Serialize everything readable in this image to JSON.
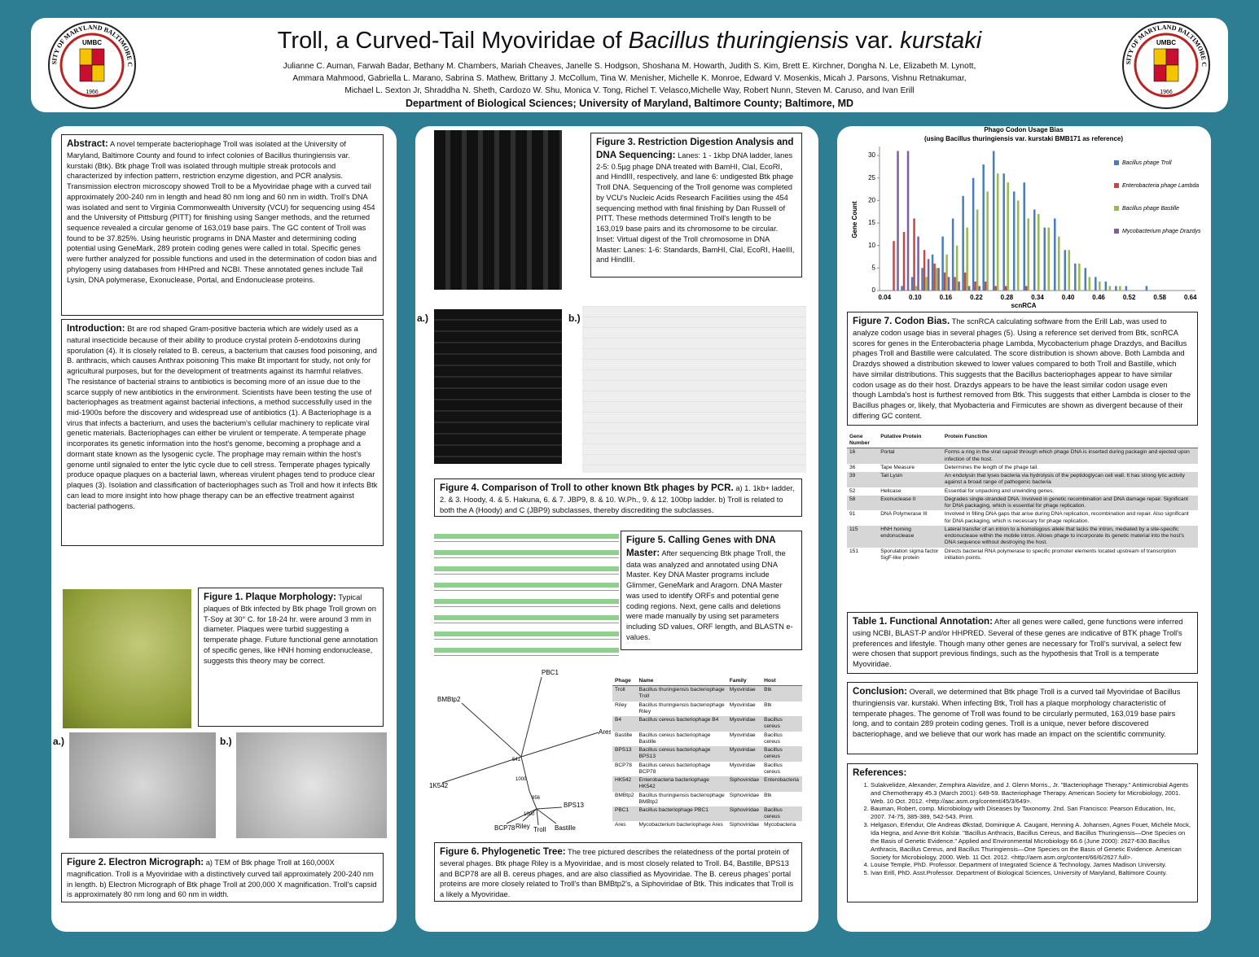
{
  "header": {
    "title": [
      "Troll, a Curved-Tail Myoviridae of ",
      "Bacillus thuringiensis",
      " var. ",
      "kurstaki"
    ],
    "authors": [
      "Julianne C. Auman, Farwah Badar, Bethany M. Chambers, Mariah Cheaves, Janelle S. Hodgson, Shoshana M. Howarth, Judith S. Kim, Brett E. Kirchner, Dongha N. Le, Elizabeth M. Lynott,",
      "Ammara Mahmood, Gabriella L. Marano, Sabrina S. Mathew, Brittany J. McCollum, Tina W. Menisher, Michelle K. Monroe, Edward V. Mosenkis, Micah J. Parsons, Vishnu Retnakumar,",
      "Michael L. Sexton Jr, Shraddha N. Sheth, Cardozo W. Shu, Monica V. Tong, Richel T. Velasco,Michelle Way, Robert Nunn, Steven M. Caruso, and Ivan Erill"
    ],
    "department": "Department of Biological Sciences; University of Maryland, Baltimore County; Baltimore, MD"
  },
  "logo": {
    "ring": "UNIVERSITY OF MARYLAND BALTIMORE COUNTY",
    "name": "UMBC",
    "year": "1966"
  },
  "abstract": {
    "heading": "Abstract:",
    "text": " A novel temperate bacteriophage Troll was isolated at the University of Maryland, Baltimore County and found to infect colonies of Bacillus thuringiensis var. kurstaki (Btk).  Btk phage Troll was isolated through multiple streak protocols and characterized by infection pattern, restriction enzyme digestion, and PCR analysis. Transmission electron microscopy showed Troll to be a Myoviridae phage with a curved tail approximately 200-240 nm in length and head 80 nm long and 60 nm in width. Troll's DNA was isolated and sent to Virginia Commonwealth University (VCU) for sequencing using 454 and the University of Pittsburg (PITT) for finishing using Sanger methods, and the returned sequence revealed a circular genome of 163,019 base pairs. The GC content of Troll was found to be 37.825%. Using heuristic programs in DNA Master and determining coding potential using GeneMark, 289 protein coding genes were called in total. Specific genes were further analyzed for possible functions and used in the determination of codon bias and phylogeny using databases from HHPred and NCBI. These annotated genes include Tail Lysin, DNA polymerase, Exonuclease, Portal, and Endonuclease proteins."
  },
  "introduction": {
    "heading": "Introduction:",
    "text": " Bt are rod shaped Gram-positive bacteria which are widely used as a natural insecticide because of their ability to produce crystal protein δ-endotoxins during sporulation (4). It is closely related to B. cereus, a bacterium that causes food poisoning, and B. anthracis, which causes Anthrax poisoning This make Bt important for study, not only for agricultural purposes, but for the development of treatments against its harmful relatives. The resistance of bacterial strains to antibiotics is becoming more of an issue due to the scarce supply of new antibiotics in the environment. Scientists have been testing the use of bacteriophages as treatment against bacterial infections, a method successfully used in the mid-1900s before the discovery and widespread use of antibiotics (1). A Bacteriophage is a virus that infects a bacterium, and uses the bacterium's cellular machinery to replicate viral genetic materials. Bacteriophages can either be virulent or temperate. A temperate phage incorporates its genetic information into the host's genome, becoming a prophage and a dormant state known as the lysogenic cycle. The prophage may remain within the host's genome until signaled to enter the lytic cycle due to cell stress. Temperate phages typically produce opaque plaques on a bacterial lawn, whereas virulent phages tend to produce clear plaques (3). Isolation and classification of bacteriophages such as Troll and how it infects Btk can lead to more insight into how phage therapy can be an effective treatment against bacterial pathogens."
  },
  "figure1": {
    "heading": "Figure 1. Plaque Morphology:",
    "text": " Typical plaques of Btk infected by Btk phage Troll grown on T-Soy at 30° C. for 18-24 hr. were around 3 mm in diameter. Plaques were turbid suggesting a temperate phage. Future functional gene annotation of specific genes, like HNH homing endonuclease, suggests this theory may be correct."
  },
  "figure2": {
    "labels": [
      "a.)",
      "b.)"
    ],
    "heading": "Figure 2. Electron Micrograph:",
    "text": " a) TEM of Btk phage Troll at 160,000X magnification. Troll is a Myoviridae with a distinctively curved tail approximately 200-240 nm in length. b) Electron Micrograph of Btk phage Troll at 200,000 X magnification. Troll's capsid is approximately 80 nm long and 60 nm in width."
  },
  "figure3": {
    "heading": "Figure 3. Restriction Digestion Analysis and DNA Sequencing:",
    "text": " Lanes: 1 - 1kbp DNA ladder, lanes 2-5: 0.5µg phage DNA treated with BamHI, ClaI, EcoRI, and HindIII, respectively, and lane 6: undigested Btk phage Troll DNA. Sequencing of the Troll genome was completed by VCU's Nucleic Acids Research Facilities using the 454 sequencing method with final finishing by Dan Russell of PITT. These methods determined Troll's length to be 163,019 base pairs and its chromosome to be circular. Inset: Virtual digest of the Troll chromosome in DNA Master: Lanes: 1-6: Standards, BamHI, ClaI, EcoRI, HaeIII, and HindIII."
  },
  "figure4": {
    "labels": [
      "a.)",
      "b.)"
    ],
    "heading": "Figure 4. Comparison of Troll to other known Btk phages by PCR.",
    "text": " a) 1. 1kb+ ladder, 2. & 3. Hoody, 4. & 5. Hakuna, 6. & 7. JBP9, 8. & 10. W.Ph., 9. & 12. 100bp ladder. b) Troll is related to both the A (Hoody) and C (JBP9) subclasses, thereby discrediting the subclasses."
  },
  "figure5": {
    "heading": "Figure 5. Calling Genes with DNA Master:",
    "text": " After sequencing Btk phage Troll, the data was analyzed and annotated using DNA Master. Key DNA Master programs include Glimmer, GeneMark and Aragorn. DNA Master was used to identify ORFs and potential gene coding regions. Next, gene calls and deletions were made manually by using set parameters including SD values, ORF length, and BLASTN e-values."
  },
  "tree": {
    "labels": [
      "PBC1",
      "BMBtp2",
      "Ares",
      "1K542",
      "BPS13",
      "BCP78",
      "Riley",
      "Troll",
      "Bastille"
    ],
    "bootstrap": [
      541,
      1000,
      956,
      1000
    ]
  },
  "phage_table": {
    "columns": [
      "Phage",
      "Name",
      "Family",
      "Host"
    ],
    "rows": [
      [
        "Troll",
        "Bacillus thuringiensis bacteriophage Troll",
        "Myoviridae",
        "Btk"
      ],
      [
        "Riley",
        "Bacillus thuringiensis bacteriophage Riley",
        "Myoviridae",
        "Btk"
      ],
      [
        "B4",
        "Bacillus cereus bacteriophage B4",
        "Myoviridae",
        "Bacillus cereus"
      ],
      [
        "Bastille",
        "Bacillus cereus bacteriophage Bastille",
        "Myoviridae",
        "Bacillus cereus"
      ],
      [
        "BPS13",
        "Bacillus cereus bacteriophage BPS13",
        "Myoviridae",
        "Bacillus cereus"
      ],
      [
        "BCP78",
        "Bacillus cereus bacteriophage BCP78",
        "Myoviridae",
        "Bacillus cereus"
      ],
      [
        "HK542",
        "Enterobacteria bacteriophage HK542",
        "Siphoviridae",
        "Enterobacteria"
      ],
      [
        "BMBtp2",
        "Bacillus thuringiensis bacteriophage BMBtp2",
        "Siphoviridae",
        "Btk"
      ],
      [
        "PBC1",
        "Bacillus bacteriophage PBC1",
        "Siphoviridae",
        "Bacillus cereus"
      ],
      [
        "Ares",
        "Mycobacterium bacteriophage Ares",
        "Siphoviridae",
        "Mycobacteria"
      ]
    ]
  },
  "figure6": {
    "heading": "Figure 6. Phylogenetic Tree:",
    "text": " The tree pictured describes the relatedness of the portal protein of several phages. Btk phage Riley is a Myoviridae, and is most closely related to Troll. B4, Bastille, BPS13 and BCP78 are all B. cereus phages, and are also classified as Myoviridae. The B. cereus phages' portal proteins are more closely related to Troll's than BMBtp2's, a Siphoviridae of Btk. This indicates that Troll is a likely a Myoviridae."
  },
  "chart_data": {
    "type": "bar",
    "title": "Phago Codon Usage Bias",
    "subtitle": "(using Bacillus thuringiensis var. kurstaki BMB171 as reference)",
    "xlabel": "scnRCA",
    "ylabel": "Gene Count",
    "categories": [
      "0.04",
      null,
      null,
      "0.10",
      null,
      null,
      "0.16",
      null,
      null,
      "0.22",
      null,
      null,
      "0.28",
      null,
      null,
      "0.34",
      null,
      null,
      "0.40",
      null,
      null,
      "0.46",
      null,
      null,
      "0.52",
      null,
      null,
      "0.58",
      null,
      null,
      "0.64"
    ],
    "ylim": [
      0,
      32
    ],
    "yticks": [
      0,
      5,
      10,
      15,
      20,
      25,
      30
    ],
    "legend": "right",
    "grid": false,
    "series": [
      {
        "name": "Bacillus phage Troll",
        "color": "#4a7ebb",
        "values": [
          0,
          0,
          1,
          3,
          5,
          8,
          12,
          16,
          21,
          25,
          28,
          31,
          26,
          22,
          24,
          18,
          14,
          16,
          9,
          6,
          5,
          3,
          2,
          1,
          1,
          0,
          1,
          0,
          0,
          0,
          0
        ]
      },
      {
        "name": "Enterobacteria phage Lambda",
        "color": "#be4b48",
        "values": [
          0,
          11,
          13,
          16,
          9,
          6,
          4,
          3,
          4,
          2,
          2,
          1,
          1,
          0,
          1,
          0,
          0,
          0,
          0,
          0,
          0,
          0,
          0,
          0,
          0,
          0,
          0,
          0,
          0,
          0,
          0
        ]
      },
      {
        "name": "Bacillus phage Bastille",
        "color": "#98b954",
        "values": [
          0,
          0,
          0,
          1,
          3,
          5,
          8,
          10,
          14,
          18,
          22,
          26,
          24,
          20,
          16,
          17,
          14,
          12,
          9,
          6,
          3,
          2,
          1,
          1,
          0,
          0,
          0,
          0,
          0,
          0,
          0
        ]
      },
      {
        "name": "Mycobacterium phage Drazdys",
        "color": "#7d60a0",
        "values": [
          0,
          31,
          31,
          12,
          7,
          5,
          3,
          2,
          1,
          1,
          0,
          0,
          0,
          0,
          0,
          0,
          0,
          0,
          0,
          0,
          0,
          0,
          0,
          0,
          0,
          0,
          0,
          0,
          0,
          0,
          0
        ]
      }
    ]
  },
  "figure7": {
    "heading": "Figure 7. Codon Bias.",
    "text": " The scnRCA calculating software from the Erill Lab, was used to analyze codon usage bias in several phages (5). Using a reference set derived from Btk, scnRCA scores for genes in the Enterobacteria phage Lambda, Mycobacterium phage Drazdys, and Bacillus phages Troll and Bastille were calculated. The score distribution is shown above. Both Lambda and Drazdys showed a distribution skewed to lower values compared to both Troll and Bastille, which have similar distributions. This suggests that the Bacillus bacteriophages appear to have similar codon usage as do their host. Drazdys appears to be have the least similar codon usage even though Lambda's host is furthest removed from Btk. This suggests that either Lambda is closer to the Bacillus phages or, likely, that Myobacteria and Firmicutes are shown as divergent because of their differing GC content."
  },
  "table1": {
    "columns": [
      "Gene Number",
      "Putative Protein",
      "Protein Function"
    ],
    "rows": [
      [
        16,
        "Portal",
        "Forms a ring in the viral capsid through which phage DNA is inserted during packagin and ejected upon infection of the host."
      ],
      [
        36,
        "Tape Measure",
        "Determines the length of the phage tail."
      ],
      [
        39,
        "Tail Lysin",
        "An endolysin that lyses bacteria via hydrolysis of the peptidoglycan cell wall. It has strong lytic activity against a broad range of pathogenic bacteria"
      ],
      [
        52,
        "Helicase",
        "Essential for unpacking and unwinding genes."
      ],
      [
        58,
        "Exonuclease II",
        "Degrades single-stranded DNA. Involved in genetic recombination and DNA damage repair. Significant for DNA packaging, which is essential for phage replication."
      ],
      [
        91,
        "DNA Polymerase III",
        "Involved in filling DNA gaps that arise during DNA replication, recombination and repair. Also significant for DNA packaging, which is necessary for phage replication."
      ],
      [
        115,
        "HNH homing endonuclease",
        "Lateral transfer of an intron to a homologous allele that lacks the intron, mediated by a site-specific endonuclease within the mobile intron. Allows phage to incorporate its genetic material into the host's DNA sequence without destroying the host."
      ],
      [
        151,
        "Sporulation sigma factor SigF-like protein",
        "Directs bacterial RNA polymerase to specific promoter elements located upstream of transcription initiation points."
      ]
    ],
    "heading": "Table 1. Functional Annotation:",
    "text": " After all genes were called, gene functions were inferred using NCBI, BLAST-P and/or HHPRED.  Several of these genes are indicative of BTK phage Troll's preferences and lifestyle. Though many other genes are necessary for Troll's survival, a select few were chosen that support previous findings, such as the hypothesis that Troll is a temperate Myoviridae."
  },
  "conclusion": {
    "heading": "Conclusion:",
    "text": " Overall, we determined that Btk phage Troll is a curved tail Myoviridae of Bacillus thuringiensis var. kurstaki. When infecting Btk, Troll has a plaque morphology characteristic of temperate phages. The genome of Troll was found to be circularly permuted, 163,019 base pairs long, and to contain 289 protein coding genes. Troll is a unique, never before discovered bacteriophage, and we believe that our work has made an impact on the scientific community."
  },
  "references": {
    "heading": "References:",
    "items": [
      "Sulakvelidze, Alexander, Zemphira Alavidze, and J. Glenn Morris., Jr. \"Bacteriophage Therapy.\" Antimicrobial Agents and Chemotherapy 45.3 (March 2001): 649-59. Bacteriophage Therapy. American Society for Microbiology, 2001. Web. 10 Oct. 2012. <http://aac.asm.org/content/45/3/649>.",
      "Bauman, Robert, comp. Microbiology with Diseases by Taxonomy. 2nd. San Francisco: Pearson Education, Inc, 2007. 74-75, 385-389, 542-543. Print.",
      "Helgason, Erlendur, Ole Andreas Økstad, Dominique A. Caugant, Henning A. Johansen, Agnes Fouet, Michéle Mock, Ida Hegna, and Anne-Brit Kolstø. \"Bacillus Anthracis, Bacillus Cereus, and Bacillus Thuringiensis—One Species on the Basis of Genetic Evidence.\" Applied and Environmental Microbiology 66.6 (June 2000): 2627-630.Bacillus Anthracis, Bacillus Cereus, and Bacillus Thuringiensis—One Species on the Basis of Genetic Evidence. American Society for Microbiology, 2000. Web. 11 Oct. 2012. <http://aem.asm.org/content/66/6/2627.full>.",
      "Louise Temple, PhD. Professor. Department of Integrated Science & Technology, James Madison University.",
      "Ivan Erill, PhD. Asst.Professor. Department of Biological Sciences, University of Maryland, Baltimore County."
    ]
  }
}
